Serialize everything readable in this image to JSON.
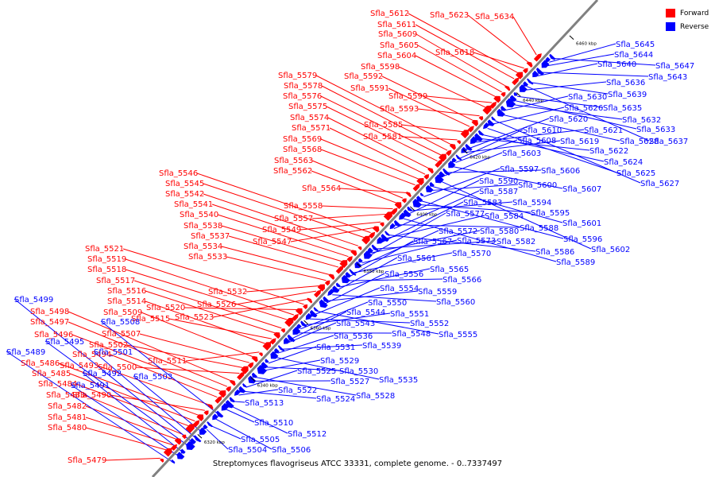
{
  "caption": "Streptomyces flavogriseus ATCC 33331, complete genome. - 0..7337497",
  "legend": [
    {
      "label": "Forward",
      "color": "#ff0000"
    },
    {
      "label": "Reverse",
      "color": "#0000ff"
    }
  ],
  "colors": {
    "forward": "#ff0000",
    "reverse": "#0000ff",
    "backbone": "#808080",
    "text": "#000000"
  },
  "axis": {
    "unit": "kbp",
    "tick_labels": [
      "6320 kbp",
      "6340 kbp",
      "6360 kbp",
      "6380 kbp",
      "6400 kbp",
      "6420 kbp",
      "6440 kbp",
      "6460 kbp"
    ]
  },
  "genes_forward": [
    "Sfla_5479",
    "Sfla_5480",
    "Sfla_5481",
    "Sfla_5482",
    "Sfla_5483",
    "Sfla_5484",
    "Sfla_5485",
    "Sfla_5486",
    "Sfla_5490",
    "Sfla_5493",
    "Sfla_5494",
    "Sfla_5496",
    "Sfla_5497",
    "Sfla_5498",
    "Sfla_5500",
    "Sfla_5502",
    "Sfla_5507",
    "Sfla_5509",
    "Sfla_5511",
    "Sfla_5514",
    "Sfla_5515",
    "Sfla_5516",
    "Sfla_5517",
    "Sfla_5518",
    "Sfla_5519",
    "Sfla_5520",
    "Sfla_5521",
    "Sfla_5523",
    "Sfla_5526",
    "Sfla_5532",
    "Sfla_5533",
    "Sfla_5534",
    "Sfla_5537",
    "Sfla_5538",
    "Sfla_5540",
    "Sfla_5541",
    "Sfla_5542",
    "Sfla_5545",
    "Sfla_5546",
    "Sfla_5547",
    "Sfla_5549",
    "Sfla_5557",
    "Sfla_5558",
    "Sfla_5562",
    "Sfla_5563",
    "Sfla_5564",
    "Sfla_5568",
    "Sfla_5569",
    "Sfla_5571",
    "Sfla_5574",
    "Sfla_5575",
    "Sfla_5576",
    "Sfla_5578",
    "Sfla_5579",
    "Sfla_5581",
    "Sfla_5585",
    "Sfla_5591",
    "Sfla_5592",
    "Sfla_5593",
    "Sfla_5598",
    "Sfla_5599",
    "Sfla_5604",
    "Sfla_5605",
    "Sfla_5609",
    "Sfla_5611",
    "Sfla_5612",
    "Sfla_5618",
    "Sfla_5623",
    "Sfla_5634"
  ],
  "genes_reverse": [
    "Sfla_5489",
    "Sfla_5491",
    "Sfla_5492",
    "Sfla_5495",
    "Sfla_5499",
    "Sfla_5501",
    "Sfla_5503",
    "Sfla_5504",
    "Sfla_5505",
    "Sfla_5506",
    "Sfla_5508",
    "Sfla_5510",
    "Sfla_5512",
    "Sfla_5513",
    "Sfla_5522",
    "Sfla_5524",
    "Sfla_5525",
    "Sfla_5527",
    "Sfla_5528",
    "Sfla_5529",
    "Sfla_5530",
    "Sfla_5531",
    "Sfla_5535",
    "Sfla_5536",
    "Sfla_5539",
    "Sfla_5543",
    "Sfla_5544",
    "Sfla_5548",
    "Sfla_5550",
    "Sfla_5551",
    "Sfla_5552",
    "Sfla_5554",
    "Sfla_5555",
    "Sfla_5556",
    "Sfla_5559",
    "Sfla_5560",
    "Sfla_5561",
    "Sfla_5565",
    "Sfla_5566",
    "Sfla_5567",
    "Sfla_5570",
    "Sfla_5572",
    "Sfla_5573",
    "Sfla_5577",
    "Sfla_5580",
    "Sfla_5582",
    "Sfla_5583",
    "Sfla_5584",
    "Sfla_5586",
    "Sfla_5587",
    "Sfla_5588",
    "Sfla_5589",
    "Sfla_5590",
    "Sfla_5594",
    "Sfla_5595",
    "Sfla_5596",
    "Sfla_5597",
    "Sfla_5600",
    "Sfla_5601",
    "Sfla_5602",
    "Sfla_5603",
    "Sfla_5606",
    "Sfla_5607",
    "Sfla_5608",
    "Sfla_5610",
    "Sfla_5619",
    "Sfla_5620",
    "Sfla_5621",
    "Sfla_5622",
    "Sfla_5624",
    "Sfla_5625",
    "Sfla_5626",
    "Sfla_5627",
    "Sfla_5628",
    "Sfla_5630",
    "Sfla_5632",
    "Sfla_5633",
    "Sfla_5635",
    "Sfla_5636",
    "Sfla_5637",
    "Sfla_5639",
    "Sfla_5640",
    "Sfla_5643",
    "Sfla_5644",
    "Sfla_5645",
    "Sfla_5647"
  ]
}
